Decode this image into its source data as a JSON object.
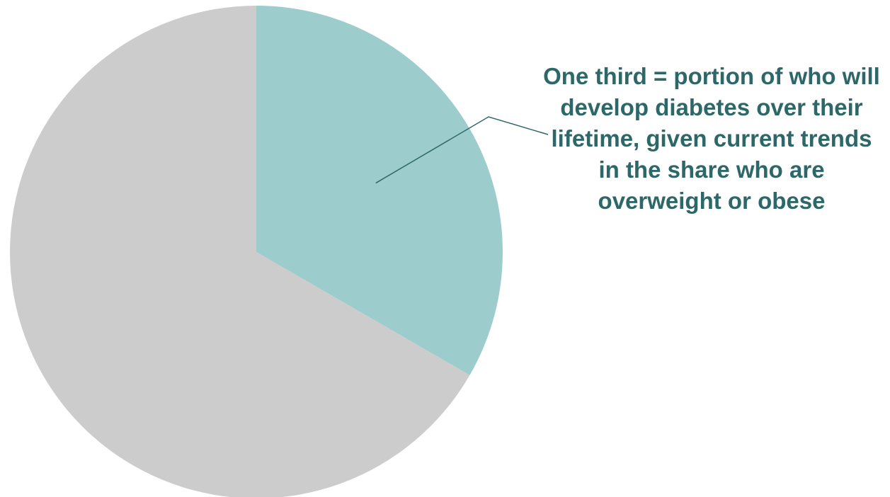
{
  "chart_data": {
    "type": "pie",
    "slices": [
      {
        "value": 0.3333,
        "color": "#9ccccc"
      },
      {
        "value": 0.6667,
        "color": "#cccccc"
      }
    ],
    "annotation": "One third = portion of who will develop diabetes over their lifetime, given current trends in the share who are overweight or obese",
    "annotation_color": "#2e6767",
    "start_angle": "12 o'clock",
    "direction": "clockwise"
  }
}
